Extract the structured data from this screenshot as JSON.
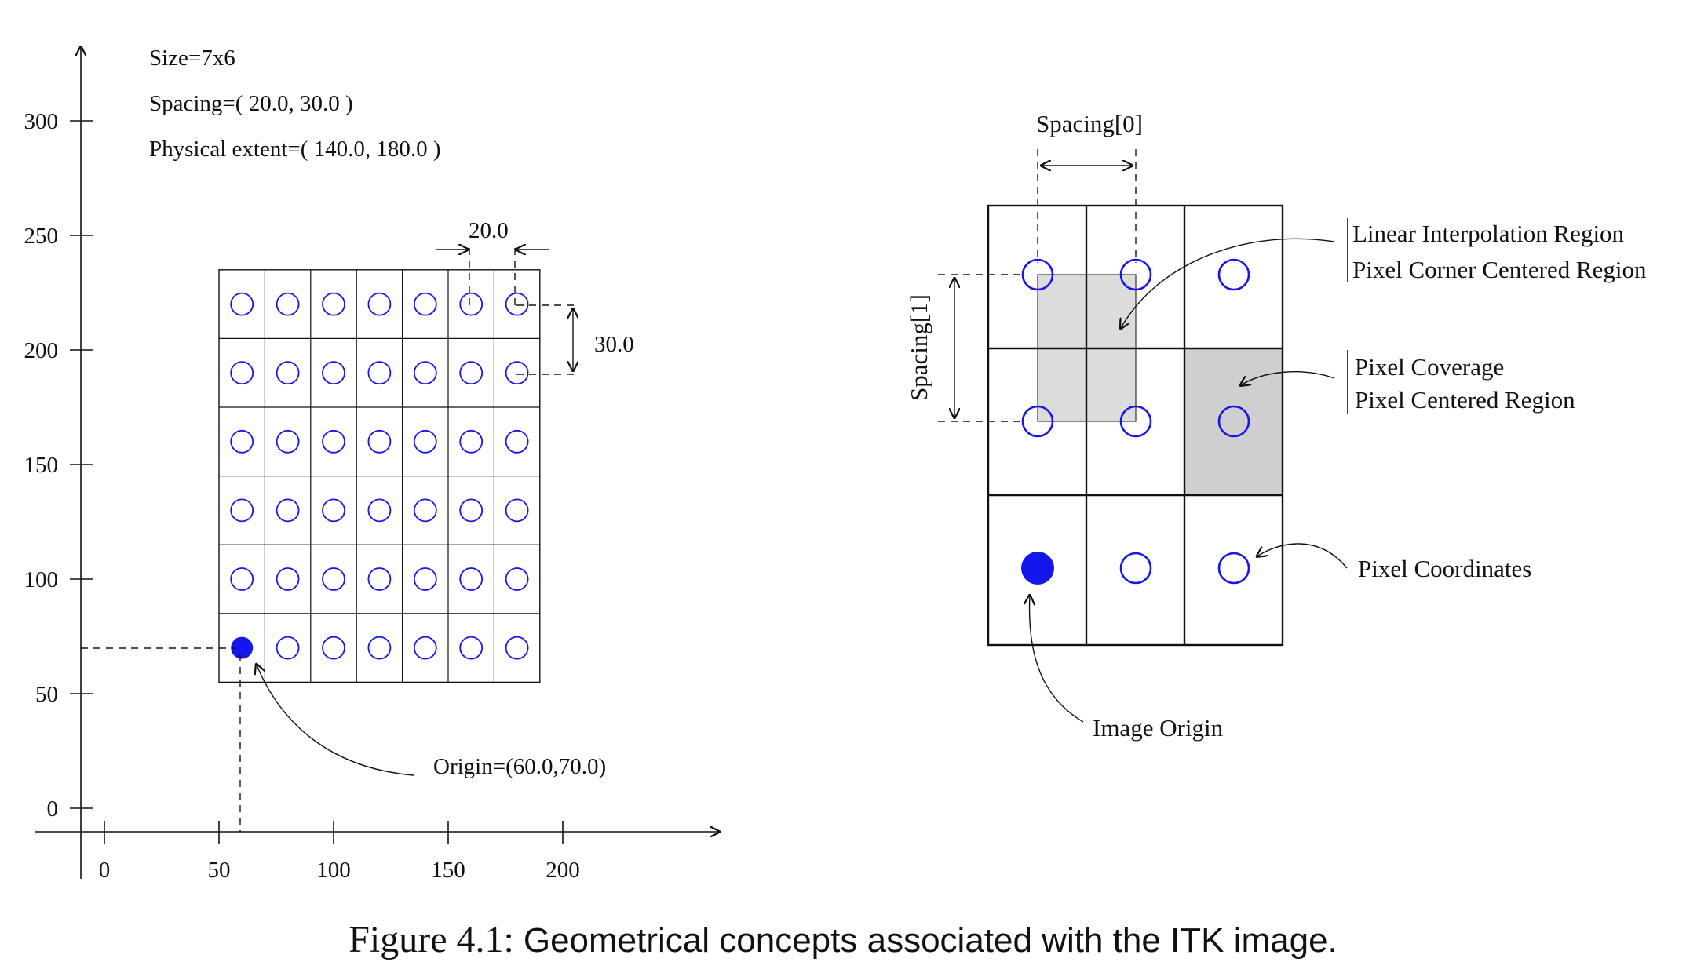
{
  "colors": {
    "line": "#111111",
    "point": "#1515ee",
    "interp_fill": "#dcdcdc",
    "coverage_fill": "#cfcfcf"
  },
  "left": {
    "size_text": "Size=7x6",
    "spacing_text": "Spacing=( 20.0, 30.0 )",
    "extent_text": "Physical extent=( 140.0, 180.0 )",
    "spacing_x_label": "20.0",
    "spacing_y_label": "30.0",
    "origin_label": "Origin=(60.0,70.0)",
    "x_ticks": [
      "0",
      "50",
      "100",
      "150",
      "200"
    ],
    "y_ticks": [
      "0",
      "50",
      "100",
      "150",
      "200",
      "250",
      "300"
    ],
    "grid": {
      "cols": 7,
      "rows": 6,
      "origin": [
        60,
        70
      ],
      "spacing": [
        20,
        30
      ]
    }
  },
  "right": {
    "spacing0_label": "Spacing[0]",
    "spacing1_label": "Spacing[1]",
    "linear_interp_label": "Linear Interpolation Region",
    "corner_centered_label": "Pixel Corner Centered Region",
    "coverage_label": "Pixel Coverage",
    "centered_label": "Pixel Centered Region",
    "coords_label": "Pixel Coordinates",
    "origin_label": "Image Origin"
  },
  "caption": {
    "figure_label": "Figure 4.1:",
    "text": "Geometrical concepts associated with the ITK image."
  }
}
